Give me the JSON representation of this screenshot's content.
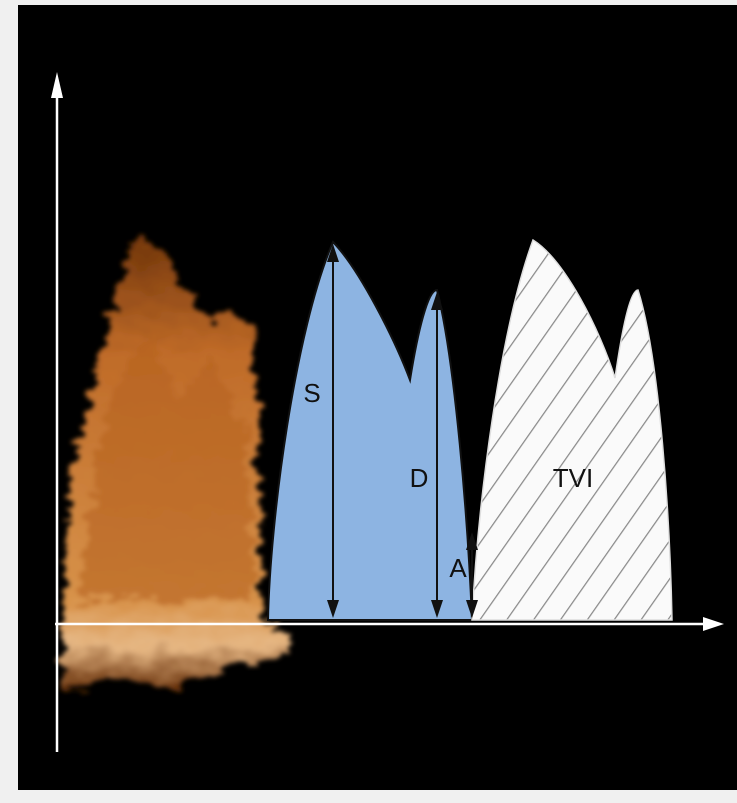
{
  "labels": {
    "s": "S",
    "d": "D",
    "a": "A",
    "tvi": "TVI"
  }
}
